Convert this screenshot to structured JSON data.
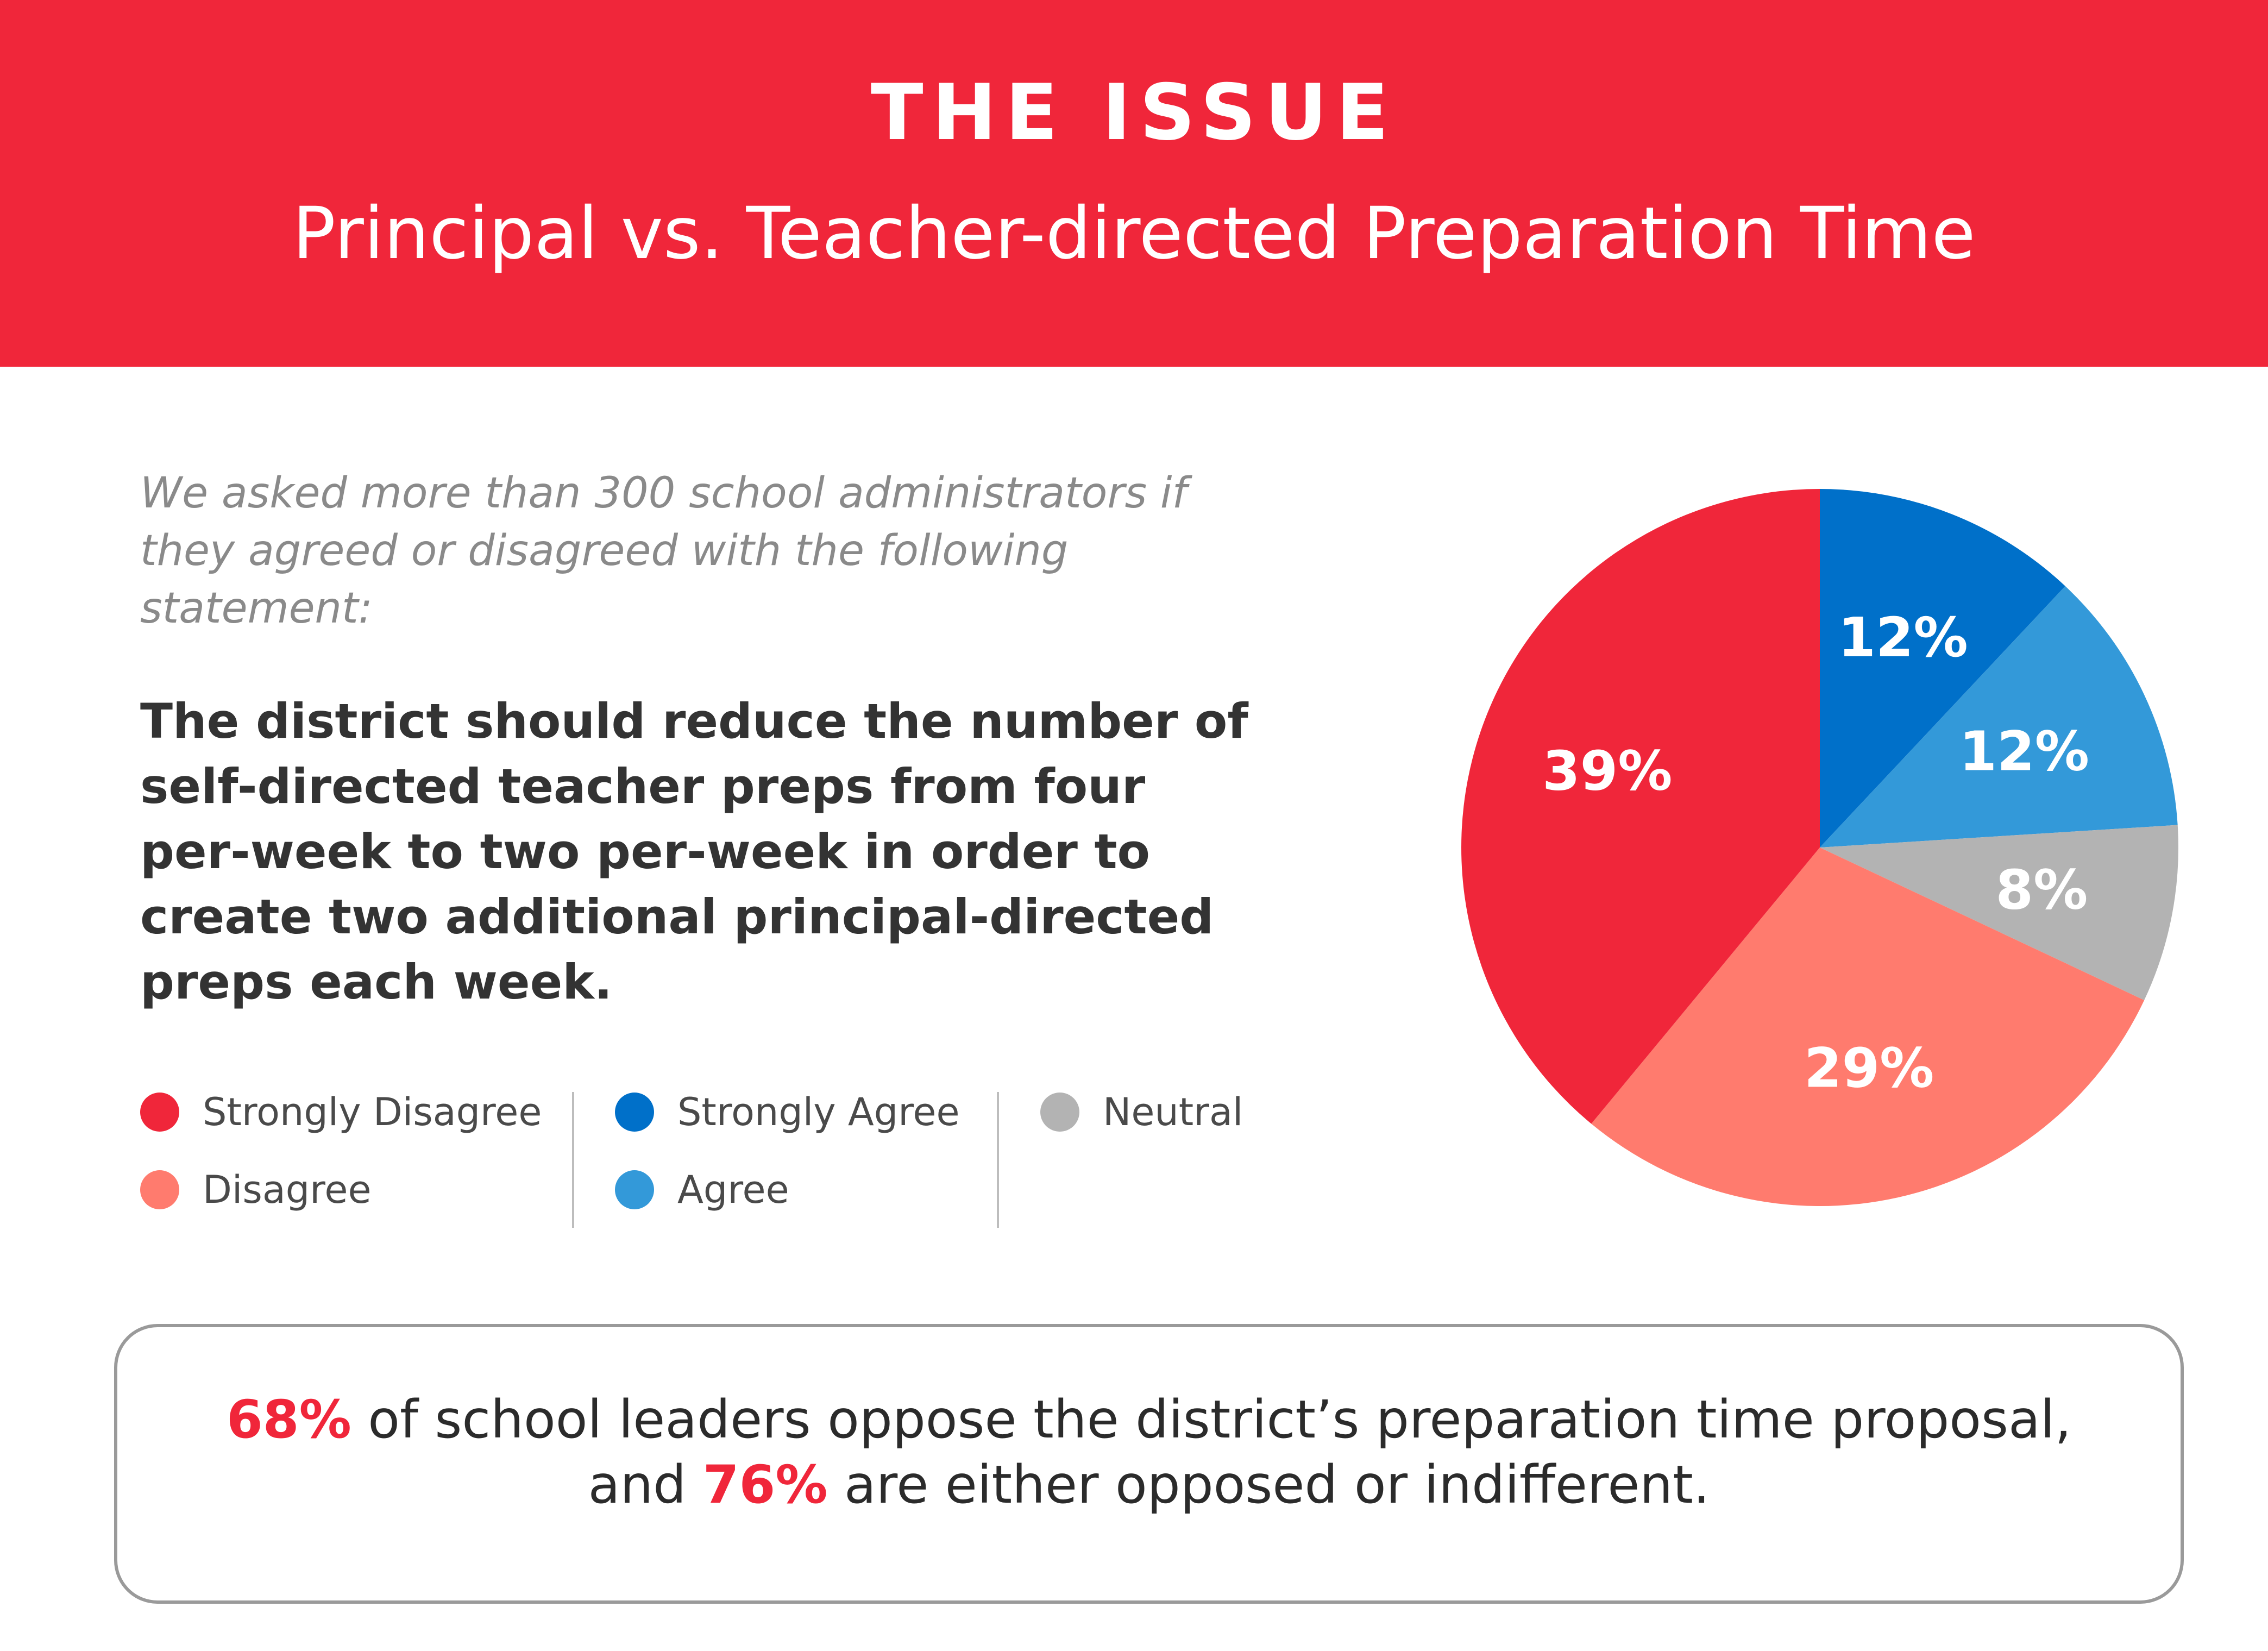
{
  "header": {
    "title": "THE ISSUE",
    "subtitle": "Principal vs. Teacher-directed Preparation Time"
  },
  "intro_text": "We asked more than 300 school administrators if they agreed or disagreed with the following statement:",
  "statement": "The district should reduce the number of self-directed teacher preps from four per-week to two per-week in order to create two additional principal-directed preps each week.",
  "legend": [
    {
      "label": "Strongly Disagree",
      "color": "#f0263a"
    },
    {
      "label": "Disagree",
      "color": "#ff7b6e"
    },
    {
      "label": "Strongly Agree",
      "color": "#0070c9"
    },
    {
      "label": "Agree",
      "color": "#3399d9"
    },
    {
      "label": "Neutral",
      "color": "#b3b3b3"
    }
  ],
  "chart_data": {
    "type": "pie",
    "title": "",
    "slices": [
      {
        "label": "Strongly Agree",
        "value": 12,
        "display": "12%",
        "color": "#0070c9"
      },
      {
        "label": "Agree",
        "value": 12,
        "display": "12%",
        "color": "#3399d9"
      },
      {
        "label": "Neutral",
        "value": 8,
        "display": "8%",
        "color": "#b3b3b3"
      },
      {
        "label": "Disagree",
        "value": 29,
        "display": "29%",
        "color": "#ff7b6e"
      },
      {
        "label": "Strongly Disagree",
        "value": 39,
        "display": "39%",
        "color": "#f0263a"
      }
    ],
    "start": "12 o'clock",
    "direction": "clockwise",
    "legend_position": "left-below-text"
  },
  "callout": {
    "line1_highlight": "68%",
    "line1_text": " of school leaders oppose the district’s preparation time proposal,",
    "line2_prefix": "and ",
    "line2_highlight": "76%",
    "line2_suffix": " are either opposed or indifferent."
  }
}
